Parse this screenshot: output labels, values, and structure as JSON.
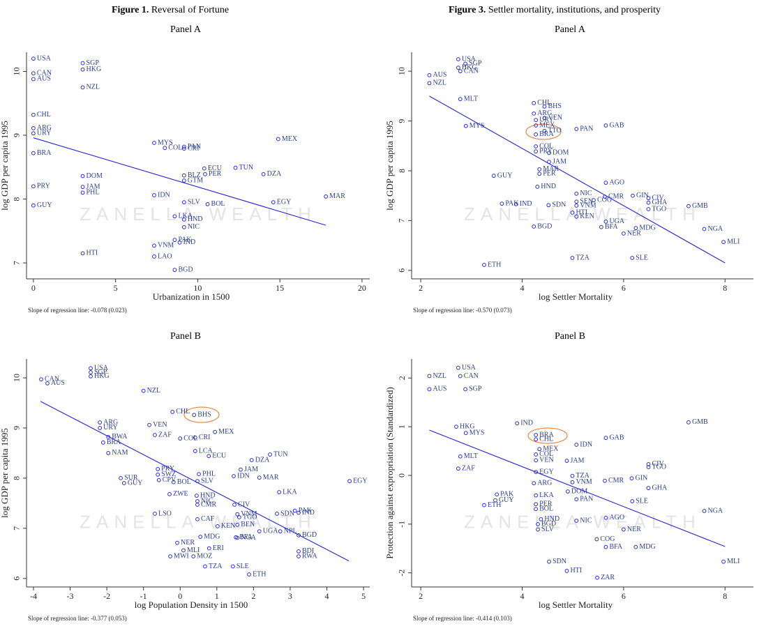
{
  "chart_data": [
    {
      "type": "scatter",
      "figure_label": "Figure 1.",
      "title": "Reversal of Fortune",
      "subtitle": "Panel A",
      "x_label": "Urbanization in 1500",
      "y_label": "log GDP per capita 1995",
      "note": "Slope of regression line: -0.078 (0.023)",
      "watermark": "ZANELLA WEALTH",
      "color": "#2a2ad0",
      "xlim": [
        -0.42,
        20.47
      ],
      "ylim": [
        6.75,
        10.3
      ],
      "xticks": [
        0,
        5,
        10,
        15,
        20
      ],
      "yticks": [
        7,
        8,
        9,
        10
      ],
      "labels": [
        "USA",
        "CAN",
        "AUS",
        "SGP",
        "HKG",
        "NZL",
        "CHL",
        "ARG",
        "URY",
        "BRA",
        "MYS",
        "COL",
        "PAN",
        "CRI",
        "MEX",
        "ECU",
        "TUN",
        "PER",
        "DZA",
        "BLZ",
        "GTM",
        "DOM",
        "JAM",
        "PHL",
        "PRY",
        "IDN",
        "MAR",
        "EGY",
        "SLV",
        "BOL",
        "GUY",
        "LKA",
        "HND",
        "NIC",
        "PAK",
        "IND",
        "VNM",
        "HTI",
        "LAO",
        "BGD"
      ],
      "x": [
        0,
        0,
        0,
        3,
        3,
        3,
        0,
        0,
        0,
        0,
        7.35,
        8.0,
        9.17,
        9.17,
        14.9,
        10.4,
        12.3,
        10.45,
        14.0,
        9.17,
        9.17,
        3,
        3,
        3,
        0,
        7.35,
        17.8,
        14.6,
        9.17,
        10.6,
        0,
        8.6,
        9.17,
        9.17,
        8.6,
        8.9,
        7.35,
        3,
        7.35,
        8.6
      ],
      "values": [
        10.2,
        9.97,
        9.88,
        10.13,
        10.03,
        9.75,
        9.32,
        9.11,
        9.03,
        8.72,
        8.88,
        8.8,
        8.82,
        8.79,
        8.94,
        8.48,
        8.49,
        8.39,
        8.39,
        8.37,
        8.29,
        8.36,
        8.19,
        8.1,
        8.2,
        8.06,
        8.04,
        7.95,
        7.95,
        7.92,
        7.9,
        7.73,
        7.68,
        7.56,
        7.36,
        7.32,
        7.27,
        7.15,
        7.1,
        6.89
      ],
      "fit": {
        "x": [
          0,
          17.8
        ],
        "values": [
          8.96,
          7.59
        ]
      }
    },
    {
      "type": "scatter",
      "figure_label": "Figure 3.",
      "title": "Settler mortality, institutions, and prosperity",
      "subtitle": "Panel A",
      "x_label": "log Settler Mortality",
      "y_label": "log GDP per capita 1995",
      "note": "Slope of regression line: -0.570 (0.073)",
      "watermark": "ZANELLA WEALTH",
      "color": "#2a2ad0",
      "xlim": [
        1.82,
        8.56
      ],
      "ylim": [
        5.83,
        10.38
      ],
      "xticks": [
        2,
        4,
        6,
        8
      ],
      "yticks": [
        6,
        7,
        8,
        9,
        10
      ],
      "labels": [
        "USA",
        "SGP",
        "HKG",
        "CAN",
        "AUS",
        "NZL",
        "MLT",
        "CHL",
        "BHS",
        "ARG",
        "VEN",
        "URY",
        "MEX",
        "PAN",
        "GAB",
        "MYS",
        "BRA",
        "TTO",
        "COL",
        "PRY",
        "DOM",
        "JAM",
        "MAR",
        "PER",
        "GUY",
        "AGO",
        "HND",
        "NIC",
        "CMR",
        "GIN",
        "CIV",
        "GHA",
        "COG",
        "SEN",
        "VNM",
        "PAK",
        "IND",
        "SDN",
        "GMB",
        "TGO",
        "HTI",
        "KEN",
        "UGA",
        "BFA",
        "MDG",
        "NGA",
        "NER",
        "BGD",
        "MLI",
        "TZA",
        "SLE",
        "ETH"
      ],
      "x": [
        2.74,
        2.88,
        2.74,
        2.78,
        2.17,
        2.17,
        2.78,
        4.23,
        4.44,
        4.23,
        4.44,
        4.27,
        4.27,
        5.07,
        5.65,
        2.89,
        4.27,
        4.44,
        4.27,
        4.27,
        4.53,
        4.53,
        4.34,
        4.34,
        3.44,
        5.65,
        4.3,
        5.07,
        5.63,
        6.18,
        6.49,
        6.49,
        5.41,
        5.07,
        5.07,
        3.6,
        3.88,
        4.52,
        7.28,
        6.49,
        4.99,
        5.07,
        5.65,
        5.56,
        6.24,
        7.59,
        6.0,
        4.23,
        7.97,
        4.99,
        6.17,
        3.25
      ],
      "values": [
        10.24,
        10.15,
        10.07,
        10.0,
        9.92,
        9.76,
        9.44,
        9.36,
        9.29,
        9.15,
        9.06,
        9.02,
        8.91,
        8.84,
        8.91,
        8.9,
        8.73,
        8.8,
        8.49,
        8.39,
        8.36,
        8.18,
        8.03,
        7.94,
        7.9,
        7.76,
        7.68,
        7.54,
        7.48,
        7.5,
        7.45,
        7.36,
        7.41,
        7.38,
        7.3,
        7.34,
        7.33,
        7.31,
        7.29,
        7.23,
        7.16,
        7.08,
        6.98,
        6.87,
        6.85,
        6.83,
        6.74,
        6.88,
        6.57,
        6.25,
        6.25,
        6.11
      ],
      "fit": {
        "x": [
          2.17,
          8.0
        ],
        "values": [
          9.5,
          6.15
        ]
      }
    },
    {
      "type": "scatter",
      "subtitle": "Panel B",
      "x_label": "log Population Density in 1500",
      "y_label": "log GDP per capita 1995",
      "note": "Slope of regression line:  -0.377 (0.053)",
      "watermark": "ZANELLA WEALTH",
      "color": "#2a2ad0",
      "xlim": [
        -4.19,
        5.17
      ],
      "ylim": [
        5.83,
        10.375
      ],
      "xticks": [
        -4,
        -3,
        -2,
        -1,
        0,
        1,
        2,
        3,
        4,
        5
      ],
      "yticks": [
        6,
        7,
        8,
        9,
        10
      ],
      "labels": [
        "USA",
        "SGP",
        "HKG",
        "CAN",
        "AUS",
        "NZL",
        "CHL",
        "BHS",
        "ARG",
        "VEN",
        "URY",
        "MEX",
        "ZAF",
        "BWA",
        "COL",
        "CRI",
        "BRA",
        "NAM",
        "LCA",
        "ECU",
        "TUN",
        "DZA",
        "JAM",
        "PRY",
        "SWZ",
        "PHL",
        "IDN",
        "MAR",
        "SUR",
        "CPV",
        "GUY",
        "BOL",
        "SLV",
        "EGY",
        "LKA",
        "ZWE",
        "HND",
        "NIC",
        "CMR",
        "CIV",
        "LSO",
        "SDN",
        "PAK",
        "IND",
        "VNM",
        "TGO",
        "CAF",
        "KEN",
        "BEN",
        "UGA",
        "NPL",
        "BGD",
        "BFA",
        "NGA",
        "MDG",
        "NER",
        "ERI",
        "MLI",
        "BDI",
        "RWA",
        "MWI",
        "MOZ",
        "TZA",
        "SLE",
        "ETH"
      ],
      "x": [
        -2.44,
        -2.44,
        -2.44,
        -3.79,
        -3.62,
        -1.0,
        -0.21,
        0.38,
        -2.19,
        -0.84,
        -2.19,
        0.95,
        -0.69,
        -1.96,
        0.0,
        0.41,
        -2.1,
        -1.96,
        0.41,
        0.78,
        2.45,
        1.95,
        1.65,
        -0.61,
        -0.61,
        0.51,
        1.46,
        2.16,
        -1.62,
        -0.58,
        -1.53,
        -0.18,
        0.47,
        4.62,
        2.7,
        -0.29,
        0.45,
        0.47,
        0.47,
        1.48,
        -0.69,
        2.64,
        3.13,
        3.23,
        1.56,
        1.61,
        0.47,
        1.02,
        1.56,
        2.16,
        2.73,
        3.23,
        1.52,
        1.56,
        0.55,
        -0.08,
        0.79,
        0.09,
        3.23,
        3.23,
        -0.27,
        0.36,
        0.68,
        1.44,
        1.88
      ],
      "values": [
        10.19,
        10.11,
        10.03,
        9.97,
        9.89,
        9.74,
        9.32,
        9.26,
        9.11,
        9.06,
        9.0,
        8.92,
        8.86,
        8.82,
        8.79,
        8.81,
        8.71,
        8.5,
        8.54,
        8.44,
        8.47,
        8.36,
        8.17,
        8.18,
        8.07,
        8.08,
        8.04,
        8.01,
        8.0,
        7.96,
        7.9,
        7.92,
        7.94,
        7.94,
        7.72,
        7.68,
        7.65,
        7.54,
        7.47,
        7.47,
        7.29,
        7.29,
        7.35,
        7.31,
        7.28,
        7.22,
        7.18,
        7.04,
        7.07,
        6.94,
        6.94,
        6.86,
        6.82,
        6.81,
        6.83,
        6.71,
        6.6,
        6.56,
        6.54,
        6.44,
        6.44,
        6.44,
        6.24,
        6.24,
        6.08
      ],
      "fit": {
        "x": [
          -3.81,
          4.6
        ],
        "values": [
          9.53,
          6.35
        ]
      }
    },
    {
      "type": "scatter",
      "subtitle": "Panel B",
      "x_label": "log Settler Mortality",
      "y_label": "Protection against expropriation (Standardized)",
      "note": "Slope of regression line: -0.414 (0.103)",
      "watermark": "ZANELLA WEALTH",
      "color": "#2a2ad0",
      "xlim": [
        1.82,
        8.56
      ],
      "ylim": [
        -2.29,
        2.39
      ],
      "xticks": [
        2,
        4,
        6,
        8
      ],
      "yticks": [
        -2,
        -1,
        0,
        1,
        2
      ],
      "labels": [
        "USA",
        "NZL",
        "CAN",
        "AUS",
        "SGP",
        "GMB",
        "IND",
        "HKG",
        "MYS",
        "BRA",
        "GAB",
        "CHL",
        "IDN",
        "MEX",
        "COL",
        "MLT",
        "VEN",
        "JAM",
        "CIV",
        "TGO",
        "ZAF",
        "EGY",
        "TZA",
        "GIN",
        "CMR",
        "VNM",
        "ARG",
        "GHA",
        "DOM",
        "PAK",
        "LKA",
        "PAN",
        "GUY",
        "SLE",
        "PER",
        "ETH",
        "BOL",
        "NGA",
        "AGO",
        "HND",
        "NIC",
        "BGD",
        "NER",
        "SLV",
        "COG",
        "BFA",
        "MDG",
        "SDN",
        "MLI",
        "HTI",
        "ZAR"
      ],
      "x": [
        2.74,
        2.17,
        2.78,
        2.17,
        2.88,
        7.28,
        3.9,
        2.7,
        2.89,
        4.27,
        5.65,
        4.27,
        5.07,
        4.34,
        4.27,
        2.78,
        4.27,
        4.88,
        6.49,
        6.49,
        2.74,
        4.27,
        4.99,
        6.16,
        5.63,
        4.99,
        4.23,
        6.49,
        4.9,
        3.5,
        4.27,
        5.07,
        3.47,
        6.17,
        4.27,
        3.25,
        4.27,
        7.59,
        5.65,
        4.37,
        5.07,
        4.31,
        6.0,
        4.31,
        5.47,
        5.65,
        6.24,
        4.53,
        7.97,
        4.88,
        5.48
      ],
      "values": [
        2.21,
        2.04,
        2.04,
        1.77,
        1.77,
        1.09,
        1.07,
        1.0,
        0.87,
        0.83,
        0.77,
        0.74,
        0.63,
        0.54,
        0.43,
        0.39,
        0.31,
        0.3,
        0.23,
        0.17,
        0.14,
        0.07,
        -0.01,
        -0.06,
        -0.11,
        -0.14,
        -0.16,
        -0.26,
        -0.33,
        -0.39,
        -0.41,
        -0.49,
        -0.51,
        -0.53,
        -0.59,
        -0.61,
        -0.69,
        -0.73,
        -0.87,
        -0.9,
        -0.93,
        -1.0,
        -1.11,
        -1.11,
        -1.31,
        -1.47,
        -1.47,
        -1.77,
        -1.77,
        -1.96,
        -2.1
      ],
      "fit": {
        "x": [
          2.17,
          8.0
        ],
        "values": [
          0.93,
          -1.46
        ]
      }
    }
  ]
}
